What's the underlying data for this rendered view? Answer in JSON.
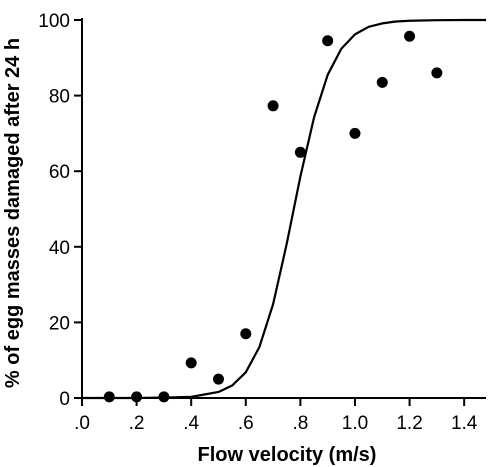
{
  "chart_data": {
    "type": "scatter",
    "title": "",
    "xlabel": "Flow velocity (m/s)",
    "ylabel": "% of egg masses damaged after 24 h",
    "xlim": [
      0,
      1.48
    ],
    "ylim": [
      0,
      100
    ],
    "x_ticks": [
      0,
      0.2,
      0.4,
      0.6,
      0.8,
      1.0,
      1.2,
      1.4
    ],
    "x_tick_labels": [
      ".0",
      ".2",
      ".4",
      ".6",
      ".8",
      "1.0",
      "1.2",
      "1.4"
    ],
    "y_ticks": [
      0,
      20,
      40,
      60,
      80,
      100
    ],
    "y_tick_labels": [
      "0",
      "20",
      "40",
      "60",
      "80",
      "100"
    ],
    "grid": false,
    "legend": "none",
    "series": [
      {
        "kind": "points",
        "x": [
          0.1,
          0.2,
          0.3,
          0.4,
          0.5,
          0.6,
          0.7,
          0.8,
          0.9,
          1.0,
          1.1,
          1.2,
          1.3
        ],
        "y": [
          0.3,
          0.3,
          0.3,
          9.3,
          5,
          17,
          77.3,
          65,
          94.5,
          70,
          83.5,
          95.7,
          86
        ]
      },
      {
        "kind": "fitted-curve",
        "x": [
          0.0,
          0.1,
          0.2,
          0.3,
          0.4,
          0.5,
          0.55,
          0.6,
          0.65,
          0.7,
          0.75,
          0.8,
          0.85,
          0.9,
          0.95,
          1.0,
          1.05,
          1.1,
          1.15,
          1.2,
          1.3,
          1.4,
          1.48
        ],
        "y": [
          0.0,
          0.0,
          0.0,
          0.1,
          0.3,
          1.6,
          3.3,
          6.8,
          13.5,
          24.8,
          40.8,
          58.6,
          74.2,
          85.5,
          92.4,
          96.2,
          98.2,
          99.1,
          99.6,
          99.8,
          99.95,
          100.0,
          100.0
        ]
      }
    ],
    "colors": {
      "marker": "#000000",
      "curve": "#000000",
      "axes": "#000000"
    }
  }
}
